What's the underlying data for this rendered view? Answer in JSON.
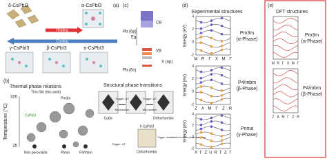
{
  "panel_a": {
    "label": "(a)",
    "delta": "δ-CsPbI3",
    "alpha_top": "α-CsPbI3",
    "heating": "Heating",
    "cooling": "Cooling",
    "gamma": "γ-CsPbI3",
    "beta": "β-CsPbI3",
    "alpha_bottom": "α-CsPbI3"
  },
  "panel_b": {
    "label": "(b)",
    "title_left": "Thermal phase relations",
    "y_label": "Temperature (°C)",
    "t_high": "320",
    "t_low": "25",
    "thin_film": "Thin film (this work)",
    "pm3m": "Pm3m",
    "bulk": "CsPbI3",
    "non_perovskite": "Non-perovskite",
    "pbnm": "Pbnm",
    "p4mbm": "P4/mbm",
    "title_right": "Structural phase transitions",
    "trigger_1": "Trigger: ΔT",
    "trigger_2": "Trigger: ΔT",
    "mechanism_1": "Mechanism",
    "mechanism_2": "Mechanism",
    "cubic": "Cubic",
    "orthorhombic_1": "Orthorhombic",
    "delta": "δ-CsPbI3",
    "orthorhombic_2": "Orthorhombic",
    "trigger_3": "Trigger: ΔT",
    "trigger_4": "Trigger: metastable-to-stable phase transition"
  },
  "panel_c": {
    "label": "(c)",
    "cb": "CB",
    "vb": "VB",
    "eg": "Eg",
    "pb6p": "Pb (6p)",
    "pb6s": "Pb (6s)",
    "xnp": "X (np)"
  },
  "panel_d": {
    "label": "(d)",
    "title": "Experimental structures",
    "plots": [
      {
        "y_label": "Energy (eV)",
        "yticks": [
          4,
          2,
          0,
          -2
        ],
        "phase": "Pm3m",
        "phase_sub": "(α-Phase)",
        "k_labels": [
          "M",
          "R",
          "Γ",
          "X",
          "M",
          "Γ"
        ]
      },
      {
        "y_label": "Energy (eV)",
        "yticks": [
          4,
          2,
          0,
          -2
        ],
        "phase": "P4/mbm",
        "phase_sub": "(β-Phase)",
        "k_labels": [
          "Z",
          "A",
          "M",
          "Γ",
          "Z",
          "R"
        ]
      },
      {
        "y_label": "Energy (eV)",
        "yticks": [
          4,
          2,
          0,
          -2
        ],
        "phase": "Pnma",
        "phase_sub": "(γ-Phase)",
        "k_labels": [
          "X",
          "Γ",
          "Z",
          "U",
          "R",
          "T",
          "Z",
          "Γ"
        ]
      }
    ]
  },
  "panel_e": {
    "label": "(e)",
    "title": "DFT structures",
    "plots": [
      {
        "phase": "Pm3m",
        "phase_sub": "(α-Phase)",
        "k_labels": [
          "M",
          "R",
          "Γ",
          "X",
          "M",
          "Γ"
        ]
      },
      {
        "phase": "P4/mbm",
        "phase_sub": "(β-Phase)",
        "k_labels": [
          "Z",
          "A",
          "M",
          "Γ",
          "Z",
          "R"
        ]
      }
    ]
  }
}
